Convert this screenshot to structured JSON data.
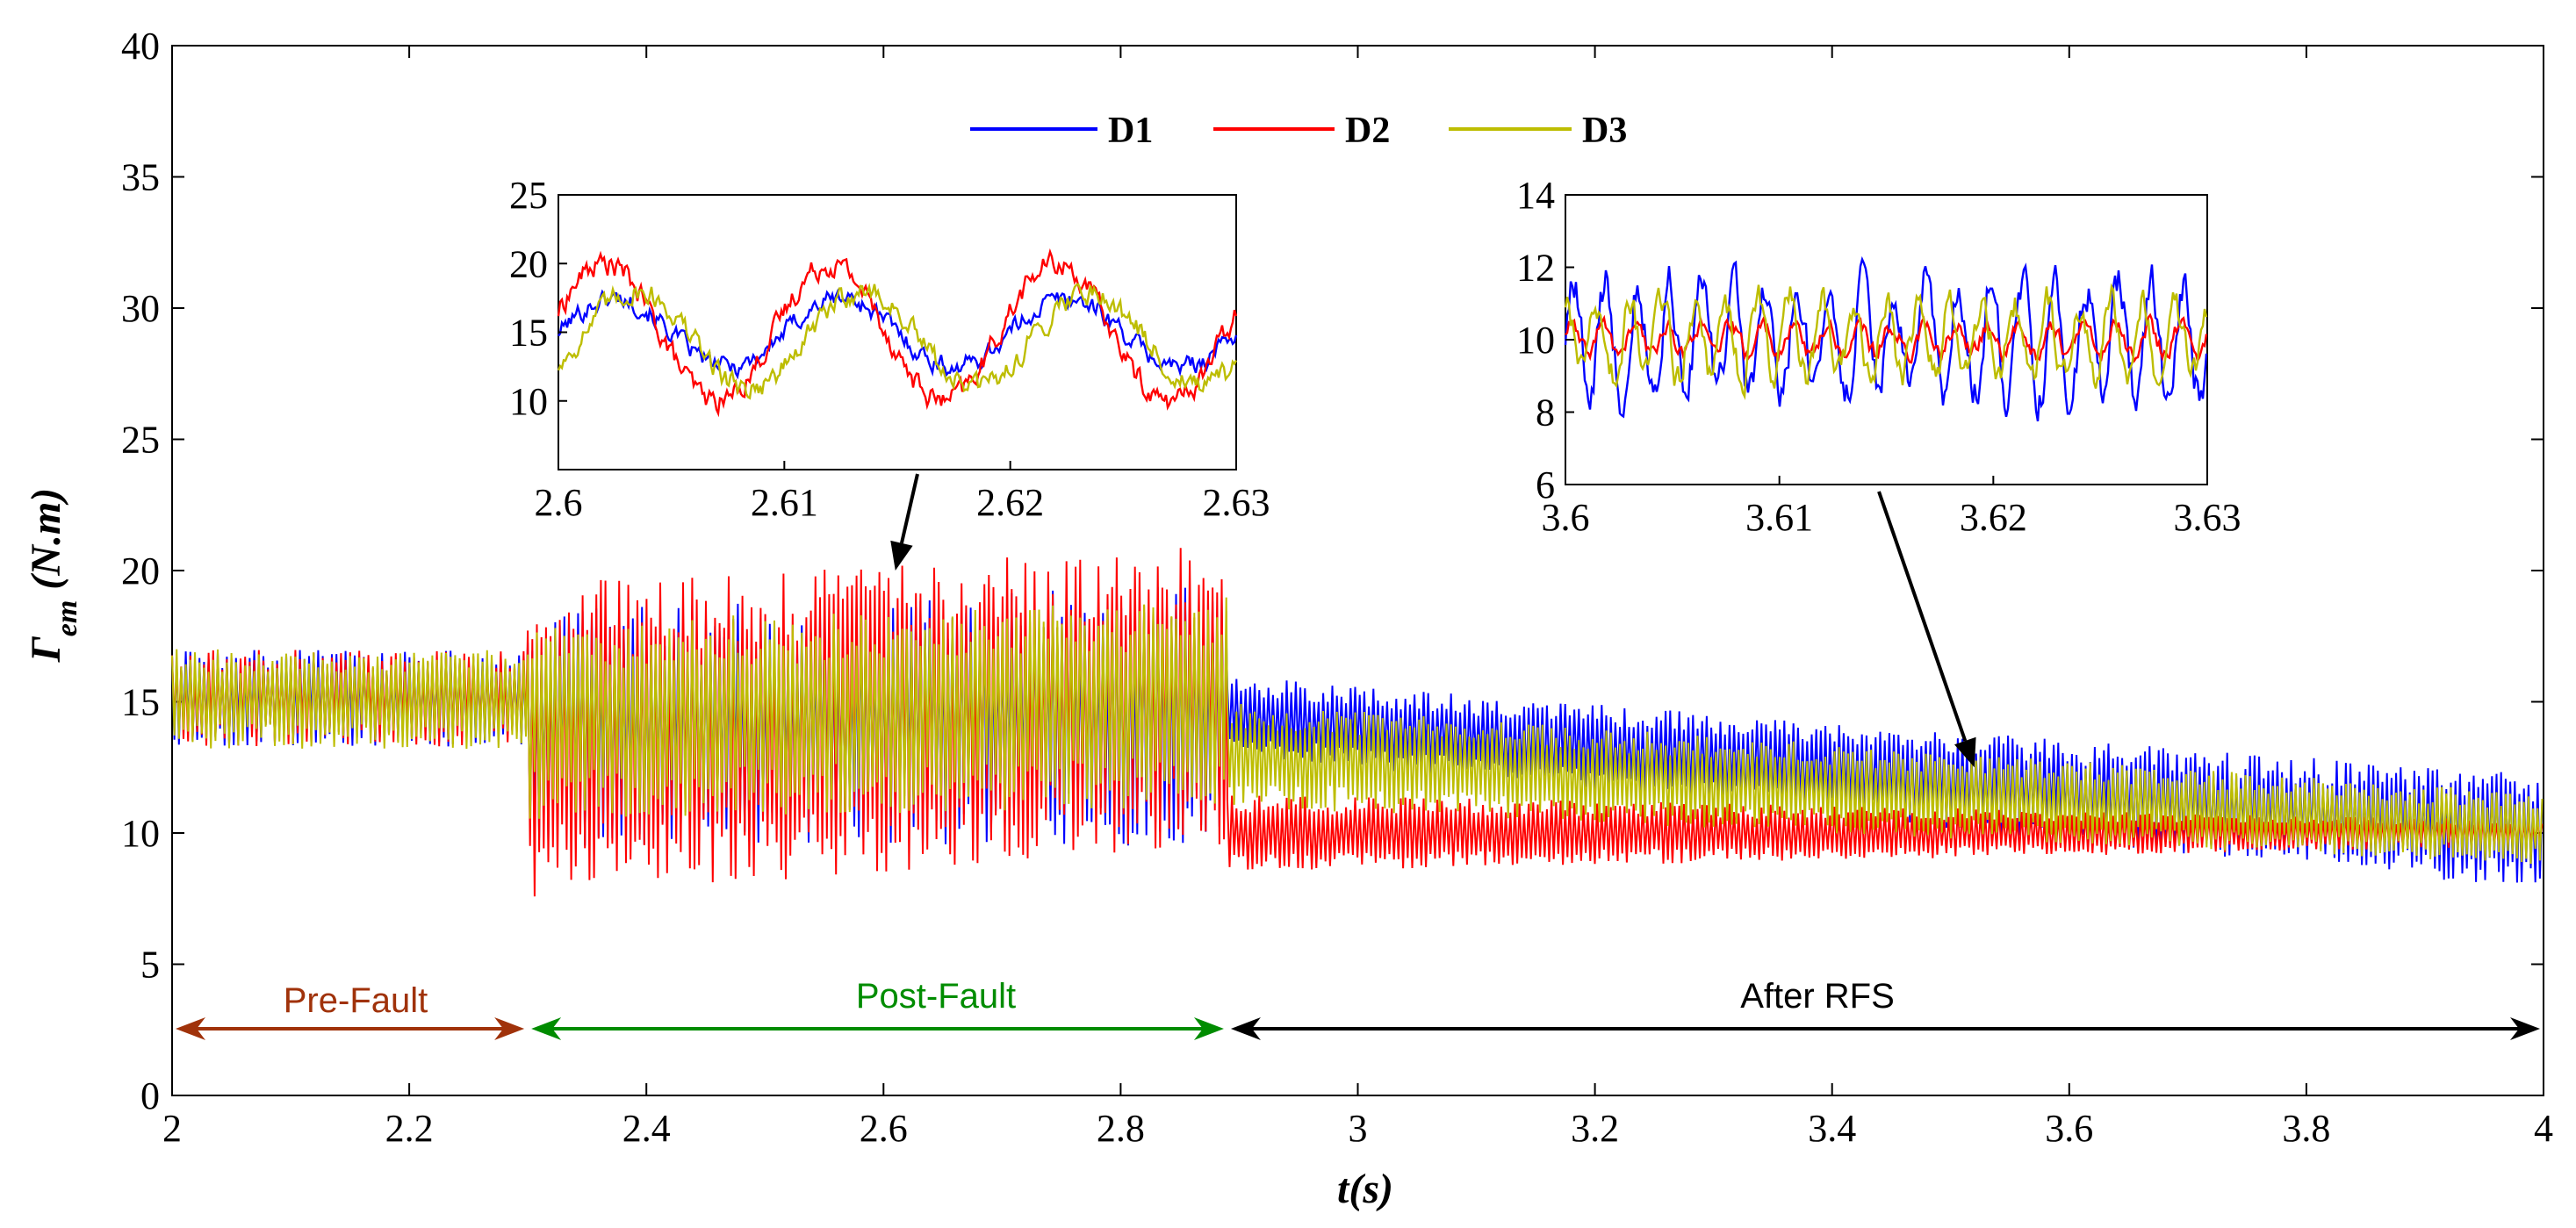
{
  "chart_data": {
    "type": "line",
    "title": "",
    "xlabel": "t(s)",
    "ylabel_main": "Γ",
    "ylabel_sub": "em",
    "ylabel_unit": " (N.m)",
    "xlim": [
      2,
      4
    ],
    "ylim": [
      0,
      40
    ],
    "xticks": [
      "2",
      "2.2",
      "2.4",
      "2.6",
      "2.8",
      "3",
      "3.2",
      "3.4",
      "3.6",
      "3.8",
      "4"
    ],
    "yticks": [
      "0",
      "5",
      "10",
      "15",
      "20",
      "25",
      "30",
      "35",
      "40"
    ],
    "legend": {
      "placement": "top-center",
      "entries": [
        {
          "name": "D1",
          "color": "#0000ff"
        },
        {
          "name": "D2",
          "color": "#ff0000"
        },
        {
          "name": "D3",
          "color": "#bdbd00"
        }
      ]
    },
    "phases": [
      {
        "label": "Pre-Fault",
        "start": 2.0,
        "end": 2.3,
        "color": "#a0320a"
      },
      {
        "label": "Post-Fault",
        "start": 2.3,
        "end": 2.89,
        "color": "#008c00"
      },
      {
        "label": "After RFS",
        "start": 2.89,
        "end": 4.0,
        "color": "#000000"
      }
    ],
    "series_envelopes": [
      {
        "name": "D1",
        "segments": [
          {
            "t": [
              2.0,
              2.3
            ],
            "low": [
              13.3,
              13.3
            ],
            "high": [
              17.0,
              17.0
            ]
          },
          {
            "t": [
              2.3,
              2.89
            ],
            "low": [
              9.5,
              9.5
            ],
            "high": [
              18.5,
              19.5
            ]
          },
          {
            "t": [
              2.89,
              4.0
            ],
            "low": [
              13.0,
              7.8
            ],
            "high": [
              16.0,
              12.2
            ]
          }
        ]
      },
      {
        "name": "D2",
        "segments": [
          {
            "t": [
              2.0,
              2.3
            ],
            "low": [
              13.3,
              13.3
            ],
            "high": [
              17.0,
              17.0
            ]
          },
          {
            "t": [
              2.3,
              2.89
            ],
            "low": [
              7.5,
              9.5
            ],
            "high": [
              19.5,
              21.0
            ]
          },
          {
            "t": [
              2.89,
              4.0
            ],
            "low": [
              8.5,
              9.5
            ],
            "high": [
              11.5,
              10.5
            ]
          }
        ]
      },
      {
        "name": "D3",
        "segments": [
          {
            "t": [
              2.0,
              2.3
            ],
            "low": [
              13.2,
              13.2
            ],
            "high": [
              17.0,
              17.0
            ]
          },
          {
            "t": [
              2.3,
              2.89
            ],
            "low": [
              10.5,
              11.0
            ],
            "high": [
              18.0,
              19.0
            ]
          },
          {
            "t": [
              2.89,
              4.0
            ],
            "low": [
              11.0,
              8.8
            ],
            "high": [
              15.0,
              11.5
            ]
          }
        ]
      }
    ],
    "insets": [
      {
        "id": "inset-post-fault",
        "xlim": [
          2.6,
          2.63
        ],
        "ylim": [
          5,
          25
        ],
        "xticks": [
          "2.6",
          "2.61",
          "2.62",
          "2.63"
        ],
        "yticks": [
          "10",
          "15",
          "20",
          "25"
        ],
        "pointer_target": [
          2.61,
          20.0
        ],
        "series": [
          {
            "name": "D1",
            "mean": 15.0,
            "amp": 2.5,
            "noise": 0.6,
            "phase": 0.0
          },
          {
            "name": "D2",
            "mean": 15.0,
            "amp": 5.0,
            "noise": 0.7,
            "phase": 0.3
          },
          {
            "name": "D3",
            "mean": 14.5,
            "amp": 3.5,
            "noise": 0.7,
            "phase": -0.6
          }
        ]
      },
      {
        "id": "inset-after-rfs",
        "xlim": [
          3.6,
          3.63
        ],
        "ylim": [
          6,
          14
        ],
        "xticks": [
          "3.6",
          "3.61",
          "3.62",
          "3.63"
        ],
        "yticks": [
          "6",
          "8",
          "10",
          "12",
          "14"
        ],
        "pointer_target": [
          3.52,
          12.5
        ],
        "series": [
          {
            "name": "D1",
            "mean": 10.0,
            "amp": 1.5,
            "noise": 0.5,
            "phase": 0.0
          },
          {
            "name": "D2",
            "mean": 10.0,
            "amp": 0.4,
            "noise": 0.2,
            "phase": 0.5
          },
          {
            "name": "D3",
            "mean": 10.0,
            "amp": 1.0,
            "noise": 0.4,
            "phase": 1.5
          }
        ]
      }
    ]
  }
}
